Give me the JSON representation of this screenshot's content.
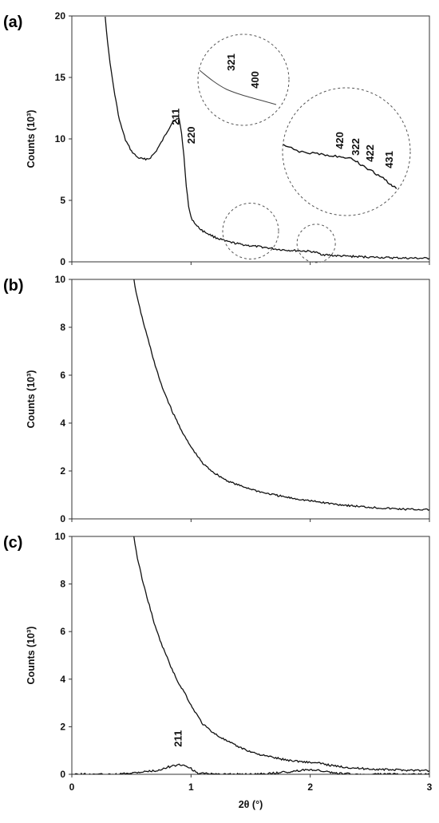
{
  "chart_data": [
    {
      "panel": "(a)",
      "type": "line",
      "xlabel": "",
      "ylabel": "Counts (10³)",
      "xlim": [
        0,
        3
      ],
      "ylim": [
        0,
        20
      ],
      "yticks": [
        0,
        5,
        10,
        15,
        20
      ],
      "xticks": [
        0,
        1,
        2,
        3
      ],
      "show_x_tick_labels": false,
      "grid": false,
      "series": [
        {
          "x": [
            0.28,
            0.3,
            0.33,
            0.36,
            0.4,
            0.45,
            0.5,
            0.55,
            0.6,
            0.65,
            0.7,
            0.75,
            0.8,
            0.84,
            0.87,
            0.9,
            0.92,
            0.94,
            0.96,
            0.98,
            1.0,
            1.05,
            1.1,
            1.2,
            1.3,
            1.4,
            1.5,
            1.6,
            1.7,
            1.8,
            1.9,
            2.0,
            2.05,
            2.1,
            2.2,
            2.4,
            2.6,
            2.8,
            3.0
          ],
          "y": [
            20.0,
            17.8,
            15.5,
            13.6,
            11.5,
            9.9,
            9.0,
            8.5,
            8.35,
            8.4,
            8.9,
            9.7,
            10.6,
            11.3,
            11.6,
            11.6,
            10.5,
            8.6,
            6.2,
            4.5,
            3.6,
            2.9,
            2.5,
            2.0,
            1.65,
            1.45,
            1.3,
            1.2,
            1.05,
            0.95,
            0.9,
            0.85,
            0.75,
            0.6,
            0.5,
            0.42,
            0.35,
            0.3,
            0.28
          ]
        }
      ],
      "peak_labels": [
        {
          "text": "211",
          "x": 0.9,
          "y": 11.8
        },
        {
          "text": "220",
          "x": 1.03,
          "y": 10.3
        }
      ],
      "insets": [
        {
          "center_x": 1.5,
          "center_y": 2.5,
          "labels": [
            "321",
            "400"
          ]
        },
        {
          "center_x": 2.05,
          "center_y": 1.5,
          "labels": [
            "420",
            "322",
            "422",
            "431"
          ]
        }
      ]
    },
    {
      "panel": "(b)",
      "type": "line",
      "xlabel": "",
      "ylabel": "Counts (10³)",
      "xlim": [
        0,
        3
      ],
      "ylim": [
        0,
        10
      ],
      "yticks": [
        0,
        2,
        4,
        6,
        8,
        10
      ],
      "xticks": [
        0,
        1,
        2,
        3
      ],
      "show_x_tick_labels": false,
      "grid": false,
      "series": [
        {
          "x": [
            0.52,
            0.55,
            0.6,
            0.65,
            0.7,
            0.75,
            0.8,
            0.85,
            0.9,
            0.95,
            1.0,
            1.1,
            1.2,
            1.3,
            1.4,
            1.5,
            1.6,
            1.8,
            2.0,
            2.2,
            2.4,
            2.6,
            2.8,
            3.0
          ],
          "y": [
            10.0,
            9.2,
            8.2,
            7.3,
            6.4,
            5.6,
            5.0,
            4.4,
            3.9,
            3.4,
            3.0,
            2.3,
            1.9,
            1.6,
            1.4,
            1.25,
            1.1,
            0.9,
            0.75,
            0.62,
            0.52,
            0.45,
            0.4,
            0.38
          ]
        }
      ]
    },
    {
      "panel": "(c)",
      "type": "line",
      "xlabel": "2θ (°)",
      "ylabel": "Counts (10³)",
      "xlim": [
        0,
        3
      ],
      "ylim": [
        0,
        10
      ],
      "yticks": [
        0,
        2,
        4,
        6,
        8,
        10
      ],
      "xticks": [
        0,
        1,
        2,
        3
      ],
      "show_x_tick_labels": true,
      "grid": false,
      "series": [
        {
          "x": [
            0.52,
            0.55,
            0.6,
            0.65,
            0.7,
            0.75,
            0.8,
            0.85,
            0.9,
            0.95,
            1.0,
            1.1,
            1.2,
            1.3,
            1.4,
            1.5,
            1.6,
            1.7,
            1.8,
            1.9,
            2.0,
            2.1,
            2.2,
            2.4,
            2.6,
            2.8,
            3.0
          ],
          "y": [
            10.0,
            9.1,
            8.0,
            7.1,
            6.2,
            5.5,
            4.9,
            4.3,
            3.8,
            3.4,
            2.9,
            2.1,
            1.7,
            1.4,
            1.15,
            0.95,
            0.8,
            0.7,
            0.6,
            0.55,
            0.5,
            0.45,
            0.35,
            0.25,
            0.2,
            0.18,
            0.15
          ]
        },
        {
          "x": [
            0.0,
            0.4,
            0.5,
            0.6,
            0.7,
            0.75,
            0.8,
            0.85,
            0.9,
            0.93,
            0.96,
            1.0,
            1.05,
            1.2,
            1.5,
            1.7,
            1.85,
            1.95,
            2.0,
            2.1,
            2.2,
            2.4,
            3.0
          ],
          "y": [
            0.0,
            0.0,
            0.05,
            0.1,
            0.15,
            0.2,
            0.3,
            0.35,
            0.4,
            0.4,
            0.35,
            0.25,
            0.05,
            0.0,
            0.0,
            0.05,
            0.12,
            0.18,
            0.2,
            0.15,
            0.05,
            0.0,
            0.0
          ]
        }
      ],
      "peak_labels": [
        {
          "text": "211",
          "x": 0.92,
          "y": 1.5
        }
      ]
    }
  ]
}
